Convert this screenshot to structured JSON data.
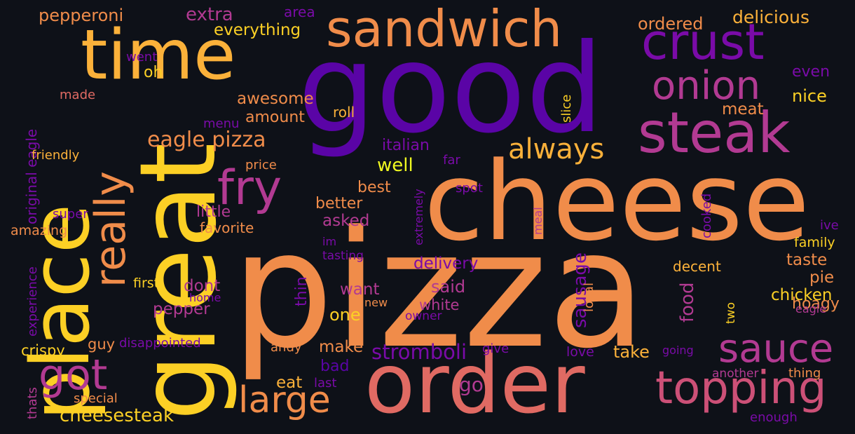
{
  "palette": {
    "background": "#0e1118",
    "deep_purple": "#5a04a6",
    "purple": "#7a0ba8",
    "magenta": "#b23a92",
    "pink": "#cc5077",
    "coral": "#e06a63",
    "orange": "#f08c4a",
    "amber": "#fbb13a",
    "yellow": "#fcd025",
    "pale_yellow": "#f0f921"
  },
  "words": [
    {
      "text": "pizza",
      "color": "orange"
    },
    {
      "text": "good",
      "color": "deep_purple"
    },
    {
      "text": "cheese",
      "color": "orange"
    },
    {
      "text": "great",
      "color": "yellow"
    },
    {
      "text": "order",
      "color": "coral"
    },
    {
      "text": "place",
      "color": "yellow"
    },
    {
      "text": "time",
      "color": "amber"
    },
    {
      "text": "steak",
      "color": "magenta"
    },
    {
      "text": "sandwich",
      "color": "orange"
    },
    {
      "text": "crust",
      "color": "purple"
    },
    {
      "text": "topping",
      "color": "pink"
    },
    {
      "text": "sauce",
      "color": "magenta"
    },
    {
      "text": "onion",
      "color": "magenta"
    },
    {
      "text": "fry",
      "color": "magenta"
    },
    {
      "text": "really",
      "color": "orange"
    },
    {
      "text": "got",
      "color": "magenta"
    },
    {
      "text": "large",
      "color": "orange"
    },
    {
      "text": "always",
      "color": "amber"
    },
    {
      "text": "eagle pizza",
      "color": "orange"
    },
    {
      "text": "stromboli",
      "color": "purple"
    },
    {
      "text": "cheesesteak",
      "color": "yellow"
    },
    {
      "text": "pepperoni",
      "color": "orange"
    },
    {
      "text": "extra",
      "color": "magenta"
    },
    {
      "text": "everything",
      "color": "yellow"
    },
    {
      "text": "area",
      "color": "purple"
    },
    {
      "text": "ordered",
      "color": "orange"
    },
    {
      "text": "delicious",
      "color": "amber"
    },
    {
      "text": "even",
      "color": "purple"
    },
    {
      "text": "nice",
      "color": "yellow"
    },
    {
      "text": "meat",
      "color": "orange"
    },
    {
      "text": "awesome",
      "color": "orange"
    },
    {
      "text": "amount",
      "color": "orange"
    },
    {
      "text": "roll",
      "color": "amber"
    },
    {
      "text": "menu",
      "color": "purple"
    },
    {
      "text": "oh",
      "color": "yellow"
    },
    {
      "text": "went",
      "color": "purple"
    },
    {
      "text": "made",
      "color": "coral"
    },
    {
      "text": "original eagle",
      "color": "purple"
    },
    {
      "text": "friendly",
      "color": "amber"
    },
    {
      "text": "price",
      "color": "orange"
    },
    {
      "text": "italian",
      "color": "purple"
    },
    {
      "text": "well",
      "color": "pale_yellow"
    },
    {
      "text": "far",
      "color": "purple"
    },
    {
      "text": "slice",
      "color": "yellow"
    },
    {
      "text": "spot",
      "color": "purple"
    },
    {
      "text": "extremely",
      "color": "purple"
    },
    {
      "text": "best",
      "color": "orange"
    },
    {
      "text": "better",
      "color": "orange"
    },
    {
      "text": "little",
      "color": "magenta"
    },
    {
      "text": "asked",
      "color": "magenta"
    },
    {
      "text": "favorite",
      "color": "orange"
    },
    {
      "text": "super",
      "color": "purple"
    },
    {
      "text": "amazing",
      "color": "orange"
    },
    {
      "text": "im",
      "color": "purple"
    },
    {
      "text": "tasting",
      "color": "purple"
    },
    {
      "text": "meal",
      "color": "magenta"
    },
    {
      "text": "cooked",
      "color": "purple"
    },
    {
      "text": "ive",
      "color": "purple"
    },
    {
      "text": "family",
      "color": "yellow"
    },
    {
      "text": "taste",
      "color": "orange"
    },
    {
      "text": "delivery",
      "color": "purple"
    },
    {
      "text": "decent",
      "color": "amber"
    },
    {
      "text": "pie",
      "color": "orange"
    },
    {
      "text": "sausage",
      "color": "purple"
    },
    {
      "text": "food",
      "color": "magenta"
    },
    {
      "text": "chicken",
      "color": "yellow"
    },
    {
      "text": "hoagy",
      "color": "orange"
    },
    {
      "text": "eagle",
      "color": "magenta"
    },
    {
      "text": "two",
      "color": "yellow"
    },
    {
      "text": "local",
      "color": "orange"
    },
    {
      "text": "said",
      "color": "magenta"
    },
    {
      "text": "want",
      "color": "magenta"
    },
    {
      "text": "white",
      "color": "magenta"
    },
    {
      "text": "one",
      "color": "yellow"
    },
    {
      "text": "new",
      "color": "orange"
    },
    {
      "text": "owner",
      "color": "purple"
    },
    {
      "text": "dont",
      "color": "magenta"
    },
    {
      "text": "pepper",
      "color": "magenta"
    },
    {
      "text": "thin",
      "color": "purple"
    },
    {
      "text": "first",
      "color": "yellow"
    },
    {
      "text": "home",
      "color": "purple"
    },
    {
      "text": "experience",
      "color": "purple"
    },
    {
      "text": "crispy",
      "color": "yellow"
    },
    {
      "text": "guy",
      "color": "orange"
    },
    {
      "text": "disappointed",
      "color": "purple"
    },
    {
      "text": "andy",
      "color": "orange"
    },
    {
      "text": "make",
      "color": "orange"
    },
    {
      "text": "give",
      "color": "purple"
    },
    {
      "text": "love",
      "color": "purple"
    },
    {
      "text": "going",
      "color": "purple"
    },
    {
      "text": "take",
      "color": "amber"
    },
    {
      "text": "bad",
      "color": "deep_purple"
    },
    {
      "text": "eat",
      "color": "amber"
    },
    {
      "text": "last",
      "color": "purple"
    },
    {
      "text": "go",
      "color": "magenta"
    },
    {
      "text": "another",
      "color": "magenta"
    },
    {
      "text": "thing",
      "color": "orange"
    },
    {
      "text": "enough",
      "color": "purple"
    },
    {
      "text": "special",
      "color": "orange"
    },
    {
      "text": "thats",
      "color": "magenta"
    }
  ]
}
